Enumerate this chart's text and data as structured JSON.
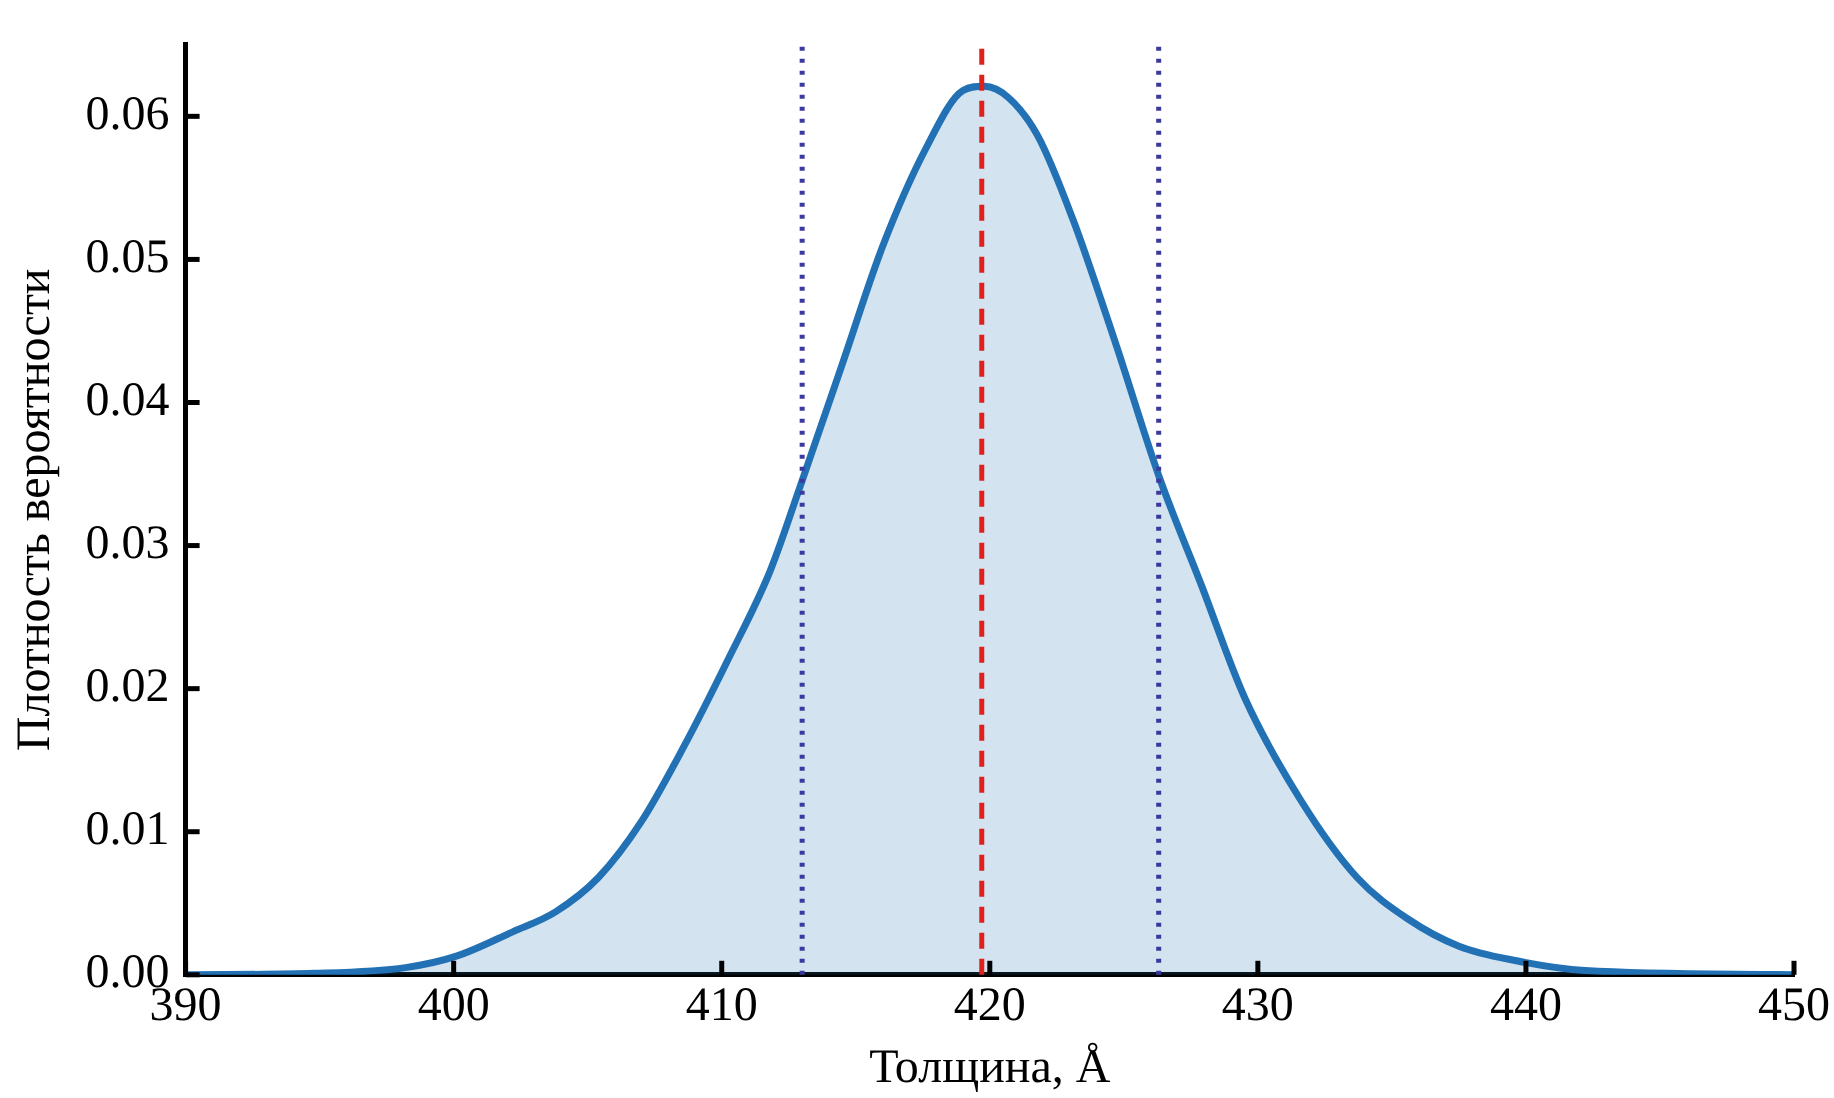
{
  "chart_data": {
    "type": "area",
    "xlabel": "Толщина, Å",
    "ylabel": "Плотность вероятности",
    "series": [
      {
        "color": "#2271b5",
        "x": [
          390,
          394.8,
          398.2,
          400.1,
          402.2,
          403.8,
          405.4,
          407.0,
          408.6,
          410.2,
          411.8,
          412.9,
          414.5,
          416.0,
          417.6,
          419.0,
          419.8,
          420.7,
          421.8,
          423.1,
          424.7,
          426.3,
          427.9,
          429.5,
          431.6,
          433.7,
          435.6,
          437.5,
          439.6,
          442.2,
          450
        ],
        "values": [
          0,
          0.0001,
          0.0005,
          0.0013,
          0.003,
          0.0044,
          0.0068,
          0.0107,
          0.016,
          0.0219,
          0.0282,
          0.034,
          0.0427,
          0.0509,
          0.0577,
          0.0618,
          0.0621,
          0.0613,
          0.0586,
          0.0528,
          0.0441,
          0.0349,
          0.0272,
          0.0194,
          0.0122,
          0.0068,
          0.0039,
          0.002,
          0.001,
          0.0003,
          0
        ]
      }
    ],
    "ref_lines": [
      {
        "axis": "x",
        "value": 413.0,
        "color": "#3a3a9e",
        "line_style": "dotted"
      },
      {
        "axis": "x",
        "value": 419.7,
        "color": "#e0201b",
        "line_style": "dashed"
      },
      {
        "axis": "x",
        "value": 426.3,
        "color": "#3a3a9e",
        "line_style": "dotted"
      }
    ],
    "xlim": [
      390,
      450
    ],
    "xticks": [
      390,
      400,
      410,
      420,
      430,
      440,
      450
    ],
    "ylim": [
      0,
      0.065
    ],
    "yticks": [
      {
        "value": 0,
        "label": "0.00"
      },
      {
        "value": 0.01,
        "label": "0.01"
      },
      {
        "value": 0.02,
        "label": "0.02"
      },
      {
        "value": 0.03,
        "label": "0.03"
      },
      {
        "value": 0.04,
        "label": "0.04"
      },
      {
        "value": 0.05,
        "label": "0.05"
      },
      {
        "value": 0.06,
        "label": "0.06"
      }
    ],
    "grid": false,
    "legend": false,
    "marker": "none",
    "line_style": "solid"
  }
}
